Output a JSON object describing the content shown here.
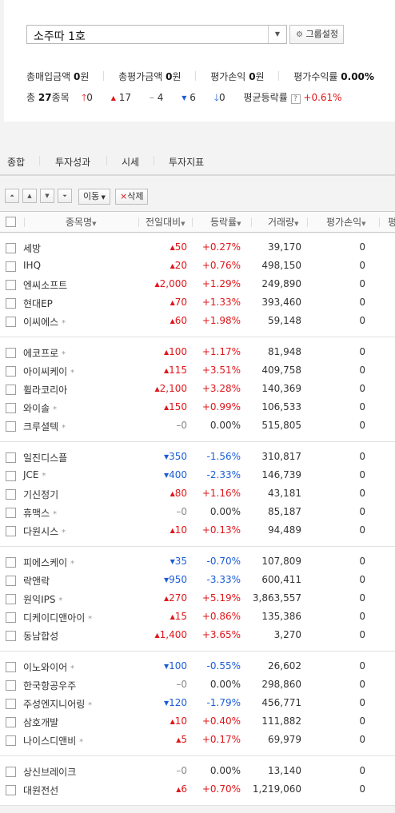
{
  "group": {
    "selected": "소주따 1호",
    "settings_button": "그룹설정"
  },
  "summary": {
    "buy_total_label": "총매입금액",
    "buy_total_value": "0",
    "buy_total_unit": "원",
    "eval_total_label": "총평가금액",
    "eval_total_value": "0",
    "eval_total_unit": "원",
    "eval_pl_label": "평가손익",
    "eval_pl_value": "0",
    "eval_pl_unit": "원",
    "eval_return_label": "평가수익률",
    "eval_return_value": "0.00%",
    "count_prefix": "총",
    "count_value": "27",
    "count_suffix": "종목",
    "upper_limit": "0",
    "up": "17",
    "flat": "4",
    "down": "6",
    "lower_limit": "0",
    "avg_rate_label": "평균등락률",
    "avg_rate_value": "+0.61%"
  },
  "tabs": [
    "종합",
    "투자성과",
    "시세",
    "투자지표"
  ],
  "toolbar": {
    "move_label": "이동",
    "delete_label": "삭제"
  },
  "columns": {
    "name": "종목명",
    "change": "전일대비",
    "rate": "등락률",
    "volume": "거래량",
    "eval_pl": "평가손익",
    "cut": "평"
  },
  "groups": [
    [
      {
        "name": "세방",
        "star": false,
        "dir": "up",
        "chg": "50",
        "rate": "+0.27%",
        "vol": "39,170",
        "pl": "0"
      },
      {
        "name": "IHQ",
        "star": false,
        "dir": "up",
        "chg": "20",
        "rate": "+0.76%",
        "vol": "498,150",
        "pl": "0"
      },
      {
        "name": "엔씨소프트",
        "star": false,
        "dir": "up",
        "chg": "2,000",
        "rate": "+1.29%",
        "vol": "249,890",
        "pl": "0"
      },
      {
        "name": "현대EP",
        "star": false,
        "dir": "up",
        "chg": "70",
        "rate": "+1.33%",
        "vol": "393,460",
        "pl": "0"
      },
      {
        "name": "이씨에스",
        "star": true,
        "dir": "up",
        "chg": "60",
        "rate": "+1.98%",
        "vol": "59,148",
        "pl": "0"
      }
    ],
    [
      {
        "name": "에코프로",
        "star": true,
        "dir": "up",
        "chg": "100",
        "rate": "+1.17%",
        "vol": "81,948",
        "pl": "0"
      },
      {
        "name": "아이씨케이",
        "star": true,
        "dir": "up",
        "chg": "115",
        "rate": "+3.51%",
        "vol": "409,758",
        "pl": "0"
      },
      {
        "name": "휠라코리아",
        "star": false,
        "dir": "up",
        "chg": "2,100",
        "rate": "+3.28%",
        "vol": "140,369",
        "pl": "0"
      },
      {
        "name": "와이솔",
        "star": true,
        "dir": "up",
        "chg": "150",
        "rate": "+0.99%",
        "vol": "106,533",
        "pl": "0"
      },
      {
        "name": "크루셜텍",
        "star": true,
        "dir": "flat",
        "chg": "0",
        "rate": "0.00%",
        "vol": "515,805",
        "pl": "0"
      }
    ],
    [
      {
        "name": "일진디스플",
        "star": false,
        "dir": "down",
        "chg": "350",
        "rate": "-1.56%",
        "vol": "310,817",
        "pl": "0"
      },
      {
        "name": "JCE",
        "star": true,
        "dir": "down",
        "chg": "400",
        "rate": "-2.33%",
        "vol": "146,739",
        "pl": "0"
      },
      {
        "name": "기신정기",
        "star": false,
        "dir": "up",
        "chg": "80",
        "rate": "+1.16%",
        "vol": "43,181",
        "pl": "0"
      },
      {
        "name": "휴맥스",
        "star": true,
        "dir": "flat",
        "chg": "0",
        "rate": "0.00%",
        "vol": "85,187",
        "pl": "0"
      },
      {
        "name": "다원시스",
        "star": true,
        "dir": "up",
        "chg": "10",
        "rate": "+0.13%",
        "vol": "94,489",
        "pl": "0"
      }
    ],
    [
      {
        "name": "피에스케이",
        "star": true,
        "dir": "down",
        "chg": "35",
        "rate": "-0.70%",
        "vol": "107,809",
        "pl": "0"
      },
      {
        "name": "락앤락",
        "star": false,
        "dir": "down",
        "chg": "950",
        "rate": "-3.33%",
        "vol": "600,411",
        "pl": "0"
      },
      {
        "name": "원익IPS",
        "star": true,
        "dir": "up",
        "chg": "270",
        "rate": "+5.19%",
        "vol": "3,863,557",
        "pl": "0"
      },
      {
        "name": "디케이디앤아이",
        "star": true,
        "dir": "up",
        "chg": "15",
        "rate": "+0.86%",
        "vol": "135,386",
        "pl": "0"
      },
      {
        "name": "동남합성",
        "star": false,
        "dir": "up",
        "chg": "1,400",
        "rate": "+3.65%",
        "vol": "3,270",
        "pl": "0"
      }
    ],
    [
      {
        "name": "이노와이어",
        "star": true,
        "dir": "down",
        "chg": "100",
        "rate": "-0.55%",
        "vol": "26,602",
        "pl": "0"
      },
      {
        "name": "한국항공우주",
        "star": false,
        "dir": "flat",
        "chg": "0",
        "rate": "0.00%",
        "vol": "298,860",
        "pl": "0"
      },
      {
        "name": "주성엔지니어링",
        "star": true,
        "dir": "down",
        "chg": "120",
        "rate": "-1.79%",
        "vol": "456,771",
        "pl": "0"
      },
      {
        "name": "삼호개발",
        "star": false,
        "dir": "up",
        "chg": "10",
        "rate": "+0.40%",
        "vol": "111,882",
        "pl": "0"
      },
      {
        "name": "나이스디앤비",
        "star": true,
        "dir": "up",
        "chg": "5",
        "rate": "+0.17%",
        "vol": "69,979",
        "pl": "0"
      }
    ],
    [
      {
        "name": "상신브레이크",
        "star": false,
        "dir": "flat",
        "chg": "0",
        "rate": "0.00%",
        "vol": "13,140",
        "pl": "0"
      },
      {
        "name": "대원전선",
        "star": false,
        "dir": "up",
        "chg": "6",
        "rate": "+0.70%",
        "vol": "1,219,060",
        "pl": "0"
      }
    ]
  ],
  "colors": {
    "up": "#e0161a",
    "down": "#1b5dd8",
    "flat": "#888888"
  },
  "icons": {
    "up": "triangle-up",
    "down": "triangle-down",
    "flat": "dash",
    "upper_limit": "arrow-up",
    "lower_limit": "arrow-down"
  }
}
